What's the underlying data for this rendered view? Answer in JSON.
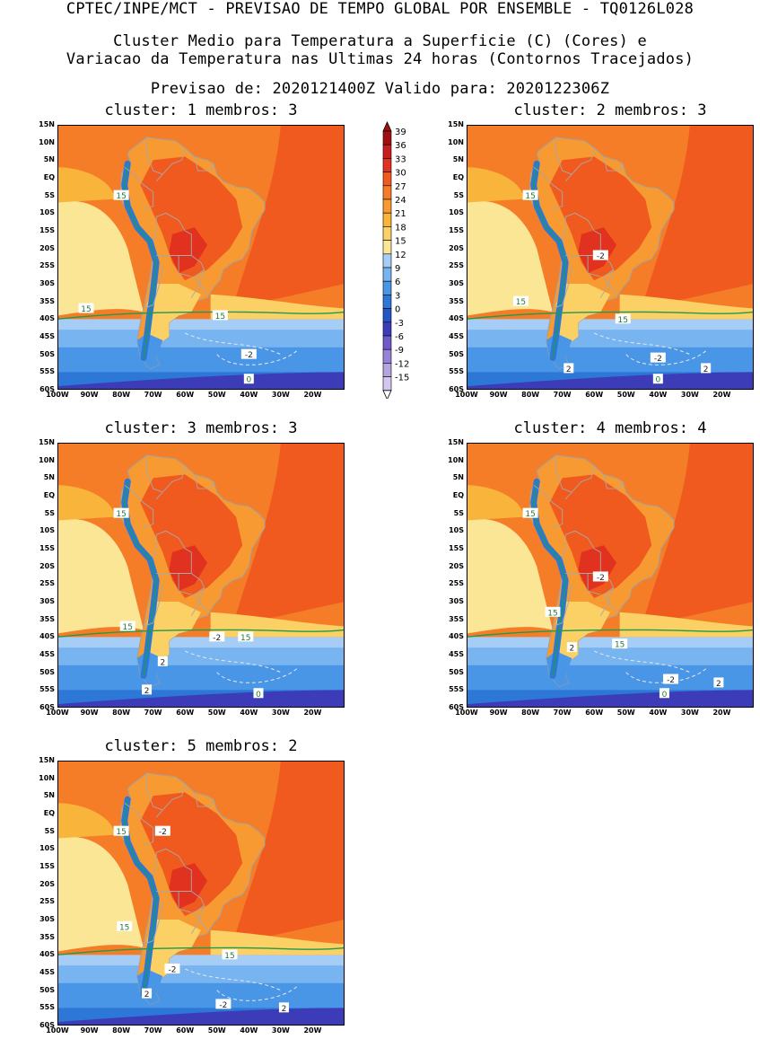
{
  "header": {
    "line1": "CPTEC/INPE/MCT - PREVISAO DE TEMPO GLOBAL POR ENSEMBLE - TQ0126L028",
    "line2": "Cluster Medio para Temperatura a Superficie (C) (Cores) e",
    "line3": "Variacao da Temperatura nas Ultimas 24 horas (Contornos Tracejados)",
    "line4": "Previsao de: 2020121400Z   Valido para: 2020122306Z"
  },
  "axes": {
    "lat_labels": [
      "15N",
      "10N",
      "5N",
      "EQ",
      "5S",
      "10S",
      "15S",
      "20S",
      "25S",
      "30S",
      "35S",
      "40S",
      "45S",
      "50S",
      "55S",
      "60S"
    ],
    "lon_labels": [
      "100W",
      "90W",
      "80W",
      "70W",
      "60W",
      "50W",
      "40W",
      "30W",
      "20W"
    ]
  },
  "colorbar": {
    "labels": [
      "39",
      "36",
      "33",
      "30",
      "27",
      "24",
      "21",
      "18",
      "15",
      "12",
      "9",
      "6",
      "3",
      "0",
      "-3",
      "-6",
      "-9",
      "-12",
      "-15"
    ],
    "colors": [
      "#a01010",
      "#c81e1e",
      "#e0321e",
      "#f05a1e",
      "#f57d28",
      "#f79a32",
      "#f9b43c",
      "#fbd064",
      "#fbe696",
      "#a5cdf5",
      "#78b4f0",
      "#4a96e6",
      "#2d78d7",
      "#2356c3",
      "#3c3cb9",
      "#6e5ac8",
      "#9682d7",
      "#b4a5e1",
      "#d2c8ee"
    ]
  },
  "clusters": [
    {
      "title": "cluster: 1  membros: 3",
      "labels": [
        {
          "t": "15",
          "lon": -80,
          "lat": -5
        },
        {
          "t": "15",
          "lon": -91,
          "lat": -37
        },
        {
          "t": "15",
          "lon": -49,
          "lat": -39
        },
        {
          "t": "-2",
          "lon": -40,
          "lat": -50
        },
        {
          "t": "0",
          "lon": -40,
          "lat": -57
        }
      ]
    },
    {
      "title": "cluster: 2  membros: 3",
      "labels": [
        {
          "t": "15",
          "lon": -80,
          "lat": -5
        },
        {
          "t": "15",
          "lon": -83,
          "lat": -35
        },
        {
          "t": "15",
          "lon": -51,
          "lat": -40
        },
        {
          "t": "-2",
          "lon": -58,
          "lat": -22
        },
        {
          "t": "2",
          "lon": -68,
          "lat": -54
        },
        {
          "t": "-2",
          "lon": -40,
          "lat": -51
        },
        {
          "t": "2",
          "lon": -25,
          "lat": -54
        },
        {
          "t": "0",
          "lon": -40,
          "lat": -57
        }
      ]
    },
    {
      "title": "cluster: 3  membros: 3",
      "labels": [
        {
          "t": "15",
          "lon": -80,
          "lat": -5
        },
        {
          "t": "15",
          "lon": -78,
          "lat": -37
        },
        {
          "t": "15",
          "lon": -41,
          "lat": -40
        },
        {
          "t": "-2",
          "lon": -50,
          "lat": -40
        },
        {
          "t": "2",
          "lon": -67,
          "lat": -47
        },
        {
          "t": "2",
          "lon": -72,
          "lat": -55
        },
        {
          "t": "0",
          "lon": -37,
          "lat": -56
        }
      ]
    },
    {
      "title": "cluster: 4  membros: 4",
      "labels": [
        {
          "t": "15",
          "lon": -80,
          "lat": -5
        },
        {
          "t": "15",
          "lon": -73,
          "lat": -33
        },
        {
          "t": "15",
          "lon": -52,
          "lat": -42
        },
        {
          "t": "-2",
          "lon": -58,
          "lat": -23
        },
        {
          "t": "2",
          "lon": -67,
          "lat": -43
        },
        {
          "t": "-2",
          "lon": -36,
          "lat": -52
        },
        {
          "t": "2",
          "lon": -21,
          "lat": -53
        },
        {
          "t": "0",
          "lon": -38,
          "lat": -56
        }
      ]
    },
    {
      "title": "cluster: 5  membros: 2",
      "labels": [
        {
          "t": "15",
          "lon": -80,
          "lat": -5
        },
        {
          "t": "-2",
          "lon": -67,
          "lat": -5
        },
        {
          "t": "15",
          "lon": -79,
          "lat": -32
        },
        {
          "t": "15",
          "lon": -46,
          "lat": -40
        },
        {
          "t": "-2",
          "lon": -64,
          "lat": -44
        },
        {
          "t": "2",
          "lon": -72,
          "lat": -51
        },
        {
          "t": "-2",
          "lon": -48,
          "lat": -54
        },
        {
          "t": "2",
          "lon": -29,
          "lat": -55
        }
      ]
    }
  ]
}
